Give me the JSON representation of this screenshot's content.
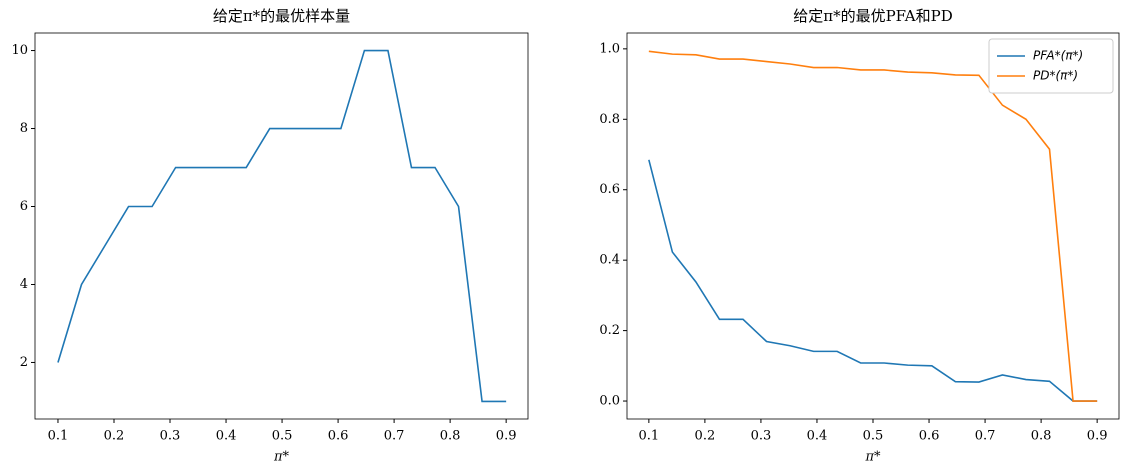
{
  "chart_data": [
    {
      "type": "line",
      "title": "给定π*的最优样本量",
      "xlabel": "π*",
      "x": [
        0.1,
        0.142,
        0.184,
        0.226,
        0.268,
        0.31,
        0.352,
        0.394,
        0.436,
        0.478,
        0.52,
        0.562,
        0.605,
        0.647,
        0.689,
        0.731,
        0.773,
        0.815,
        0.857,
        0.9
      ],
      "series": [
        {
          "name": null,
          "color": "#1f77b4",
          "values": [
            2,
            4,
            5,
            6,
            6,
            7,
            7,
            7,
            7,
            8,
            8,
            8,
            8,
            10,
            10,
            7,
            7,
            6,
            1,
            1
          ]
        }
      ],
      "xlim": [
        0.059,
        0.939
      ],
      "ylim": [
        0.55,
        10.45
      ],
      "xticks": [
        0.1,
        0.2,
        0.3,
        0.4,
        0.5,
        0.6,
        0.7,
        0.8,
        0.9
      ],
      "yticks": [
        2,
        4,
        6,
        8,
        10
      ]
    },
    {
      "type": "line",
      "title": "给定π*的最优PFA和PD",
      "xlabel": "π*",
      "legend": "upper right",
      "x": [
        0.1,
        0.142,
        0.184,
        0.226,
        0.268,
        0.31,
        0.352,
        0.394,
        0.436,
        0.478,
        0.52,
        0.562,
        0.605,
        0.647,
        0.689,
        0.731,
        0.773,
        0.815,
        0.857,
        0.9
      ],
      "series": [
        {
          "name": "PFA*(π*)",
          "color": "#1f77b4",
          "values": [
            0.685,
            0.423,
            0.338,
            0.232,
            0.232,
            0.169,
            0.157,
            0.141,
            0.141,
            0.108,
            0.108,
            0.102,
            0.1,
            0.055,
            0.054,
            0.074,
            0.061,
            0.056,
            0.0,
            0.0
          ]
        },
        {
          "name": "PD*(π*)",
          "color": "#ff7f0e",
          "values": [
            0.993,
            0.985,
            0.983,
            0.971,
            0.971,
            0.964,
            0.957,
            0.947,
            0.947,
            0.94,
            0.94,
            0.934,
            0.932,
            0.926,
            0.925,
            0.84,
            0.8,
            0.715,
            0.0,
            0.0
          ]
        }
      ],
      "xlim": [
        0.061,
        0.939
      ],
      "ylim": [
        -0.051,
        1.045
      ],
      "xticks": [
        0.1,
        0.2,
        0.3,
        0.4,
        0.5,
        0.6,
        0.7,
        0.8,
        0.9
      ],
      "yticks": [
        {
          "value": 0,
          "label": "0.0"
        },
        0.2,
        0.4,
        0.6,
        0.8,
        {
          "value": 1,
          "label": "1.0"
        }
      ]
    }
  ]
}
